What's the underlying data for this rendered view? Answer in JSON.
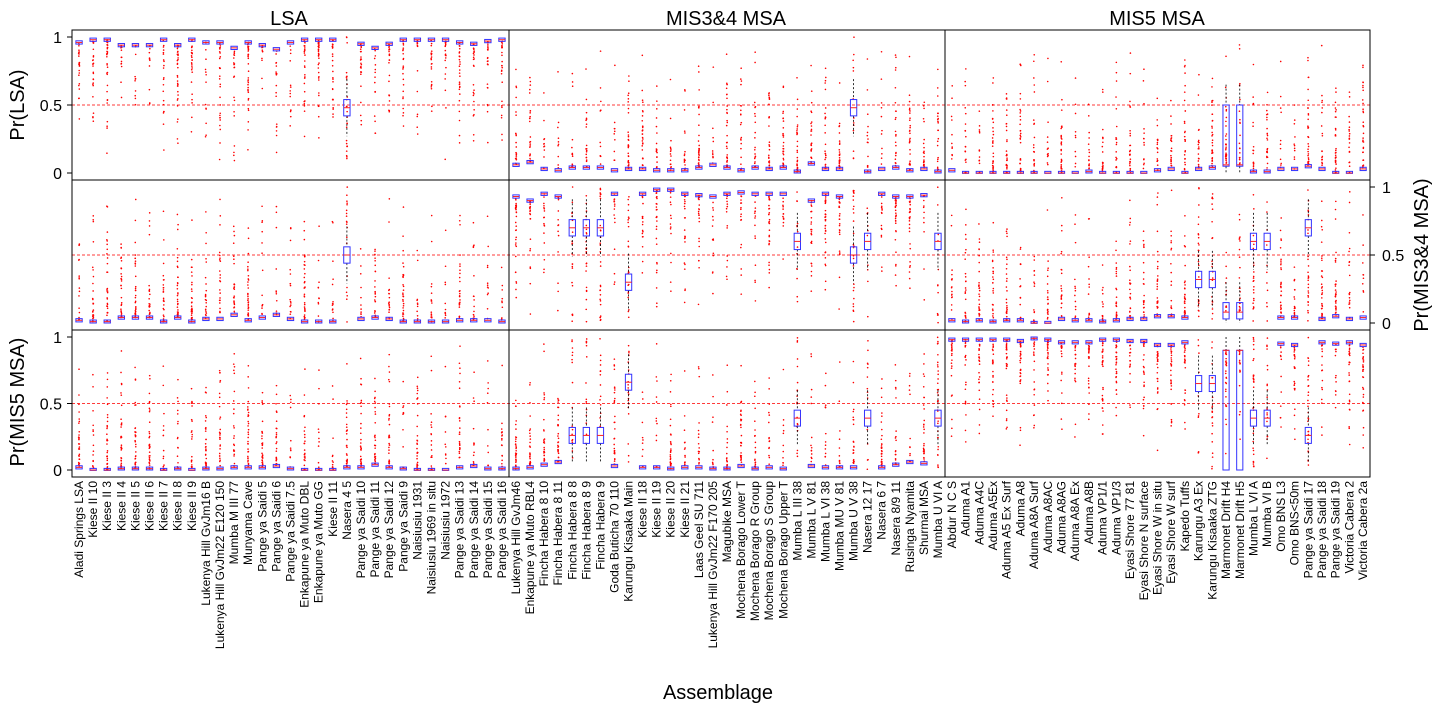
{
  "chart_data": {
    "type": "boxplot",
    "figure_title": "",
    "xlabel": "Assemblage",
    "column_titles": [
      "LSA",
      "MIS3&4 MSA",
      "MIS5 MSA"
    ],
    "row_labels": [
      "Pr(LSA)",
      "Pr(MIS3&4 MSA)",
      "Pr(MIS5 MSA)"
    ],
    "row_label_sides": [
      "left",
      "right",
      "left"
    ],
    "ylim": [
      0,
      1
    ],
    "y_ticks": [
      0,
      0.5,
      1
    ],
    "y_tick_labels": [
      "0",
      "0.5",
      "1"
    ],
    "reference_line": 0.5,
    "colors": {
      "box": "#3333ff",
      "median": "#ff2020",
      "outlier": "#ff0000",
      "refline": "#ff3b3b",
      "frame": "#000000"
    },
    "groups": [
      {
        "name": "LSA",
        "categories": [
          "Aladi Springs LSA",
          "Kiese II 10",
          "Kiese II 3",
          "Kiese II 4",
          "Kiese II 5",
          "Kiese II 6",
          "Kiese II 7",
          "Kiese II 8",
          "Kiese II 9",
          "Lukenya Hill GvJm16 B",
          "Lukenya Hill GvJm22 E120 150",
          "Mumba M III 77",
          "Munyama Cave",
          "Pange ya Saidi 5",
          "Pange ya Saidi 6",
          "Pange ya Saidi 7.5",
          "Enkapune ya Muto DBL",
          "Enkapune ya Muto GG",
          "Kiese II 11",
          "Nasera 4 5",
          "Pange ya Saidi 10",
          "Pange ya Saidi 11",
          "Pange ya Saidi 12",
          "Pange ya Saidi 9",
          "Naisiusiu 1931",
          "Naisiusiu 1969 in situ",
          "Naisiusiu 1972",
          "Pange ya Saidi 13",
          "Pange ya Saidi 14",
          "Pange ya Saidi 15",
          "Pange ya Saidi 16"
        ],
        "medians": {
          "Pr(LSA)": [
            0.96,
            0.98,
            0.98,
            0.94,
            0.94,
            0.94,
            0.98,
            0.94,
            0.98,
            0.96,
            0.96,
            0.92,
            0.96,
            0.94,
            0.91,
            0.96,
            0.98,
            0.98,
            0.98,
            0.48,
            0.95,
            0.92,
            0.95,
            0.98,
            0.98,
            0.98,
            0.98,
            0.96,
            0.95,
            0.97,
            0.98
          ],
          "Pr(MIS3&4 MSA)": [
            0.02,
            0.01,
            0.01,
            0.04,
            0.04,
            0.04,
            0.01,
            0.04,
            0.01,
            0.03,
            0.03,
            0.06,
            0.02,
            0.04,
            0.06,
            0.03,
            0.01,
            0.01,
            0.01,
            0.5,
            0.03,
            0.04,
            0.03,
            0.01,
            0.01,
            0.01,
            0.01,
            0.02,
            0.02,
            0.02,
            0.01
          ],
          "Pr(MIS5 MSA)": [
            0.02,
            0.0,
            0.0,
            0.01,
            0.01,
            0.01,
            0.0,
            0.01,
            0.0,
            0.01,
            0.01,
            0.02,
            0.02,
            0.02,
            0.03,
            0.01,
            0.0,
            0.0,
            0.0,
            0.02,
            0.02,
            0.04,
            0.02,
            0.01,
            0.0,
            0.0,
            0.0,
            0.02,
            0.03,
            0.01,
            0.01
          ]
        }
      },
      {
        "name": "MIS3&4 MSA",
        "categories": [
          "Lukenya Hill GvJm46",
          "Enkapune ya Muto RBL4",
          "Fincha Habera 8 10",
          "Fincha Habera 8 11",
          "Fincha Habera 8 8",
          "Fincha Habera 8 9",
          "Fincha Habera 9",
          "Goda Buticha 70 110",
          "Karungu Kisaaka Main",
          "Kiese II 18",
          "Kiese II 19",
          "Kiese II 20",
          "Kiese II 21",
          "Laas Geel SU 711",
          "Lukenya Hill GvJm22 F170 205",
          "Magubike MSA",
          "Mochena Borago Lower T",
          "Mochena Borago R Group",
          "Mochena Borago S Group",
          "Mochena Borago Upper T",
          "Mumba L III 38",
          "Mumba L V 81",
          "Mumba L VI 38",
          "Mumba MU V 81",
          "Mumba U V 38",
          "Nasera 12 17",
          "Nasera 6 7",
          "Nasera 8/9 11",
          "Rusinga Nyamita",
          "Shurmai MSA",
          "Mumba U VI A"
        ],
        "medians": {
          "Pr(LSA)": [
            0.06,
            0.08,
            0.03,
            0.02,
            0.04,
            0.04,
            0.04,
            0.02,
            0.03,
            0.03,
            0.02,
            0.02,
            0.02,
            0.04,
            0.06,
            0.04,
            0.02,
            0.04,
            0.03,
            0.04,
            0.01,
            0.07,
            0.03,
            0.03,
            0.48,
            0.01,
            0.03,
            0.04,
            0.02,
            0.03,
            0.01
          ],
          "Pr(MIS3&4 MSA)": [
            0.93,
            0.9,
            0.95,
            0.93,
            0.7,
            0.7,
            0.7,
            0.95,
            0.3,
            0.95,
            0.98,
            0.98,
            0.95,
            0.94,
            0.93,
            0.95,
            0.96,
            0.95,
            0.95,
            0.95,
            0.6,
            0.9,
            0.95,
            0.93,
            0.5,
            0.6,
            0.95,
            0.93,
            0.93,
            0.94,
            0.6
          ],
          "Pr(MIS5 MSA)": [
            0.01,
            0.02,
            0.04,
            0.06,
            0.26,
            0.26,
            0.26,
            0.03,
            0.66,
            0.02,
            0.02,
            0.01,
            0.02,
            0.02,
            0.01,
            0.01,
            0.03,
            0.01,
            0.02,
            0.01,
            0.39,
            0.03,
            0.02,
            0.02,
            0.02,
            0.39,
            0.02,
            0.04,
            0.06,
            0.05,
            0.39
          ]
        }
      },
      {
        "name": "MIS5 MSA",
        "categories": [
          "Abdur N C S",
          "Aduma A1",
          "Aduma A4C",
          "Aduma A5Ex",
          "Aduma A5 Ex Surf",
          "Aduma A8",
          "Aduma A8A Surf",
          "Aduma A8AC",
          "Aduma A8AG",
          "Aduma A8A Ex",
          "Aduma A8B",
          "Aduma VP1/1",
          "Aduma VP1/3",
          "Eyasi Shore 77 81",
          "Eyasi Shore N surface",
          "Eyasi Shore W in situ",
          "Eyasi Shore W surf",
          "Kapedo Tuffs",
          "Karungu A3 Ex",
          "Karungu Kisaaka ZTG",
          "Marmonet Drift H4",
          "Marmonet Drift H5",
          "Mumba L VI A",
          "Mumba VI B",
          "Omo BNS L3",
          "Omo BNS<50m",
          "Pange ya Saidi 17",
          "Pange ya Saidi 18",
          "Pange ya Saidi 19",
          "Victoria Cabera 2",
          "Victoria Cabera 2a"
        ],
        "medians": {
          "Pr(LSA)": [
            0.02,
            0.0,
            0.0,
            0.0,
            0.0,
            0.0,
            0.0,
            0.0,
            0.0,
            0.0,
            0.01,
            0.0,
            0.0,
            0.0,
            0.0,
            0.02,
            0.03,
            0.0,
            0.03,
            0.04,
            0.06,
            0.06,
            0.01,
            0.01,
            0.03,
            0.03,
            0.05,
            0.03,
            0.0,
            0.0,
            0.03
          ],
          "Pr(MIS3&4 MSA)": [
            0.02,
            0.01,
            0.02,
            0.01,
            0.02,
            0.02,
            0.0,
            0.0,
            0.03,
            0.02,
            0.02,
            0.01,
            0.02,
            0.03,
            0.03,
            0.05,
            0.05,
            0.04,
            0.32,
            0.32,
            0.08,
            0.08,
            0.6,
            0.6,
            0.04,
            0.04,
            0.7,
            0.03,
            0.05,
            0.03,
            0.04
          ],
          "Pr(MIS5 MSA)": [
            0.98,
            0.98,
            0.98,
            0.98,
            0.98,
            0.97,
            0.99,
            0.98,
            0.96,
            0.96,
            0.96,
            0.98,
            0.98,
            0.97,
            0.97,
            0.94,
            0.94,
            0.96,
            0.65,
            0.65,
            0.9,
            0.9,
            0.39,
            0.39,
            0.95,
            0.94,
            0.26,
            0.96,
            0.95,
            0.96,
            0.94
          ]
        }
      }
    ]
  }
}
